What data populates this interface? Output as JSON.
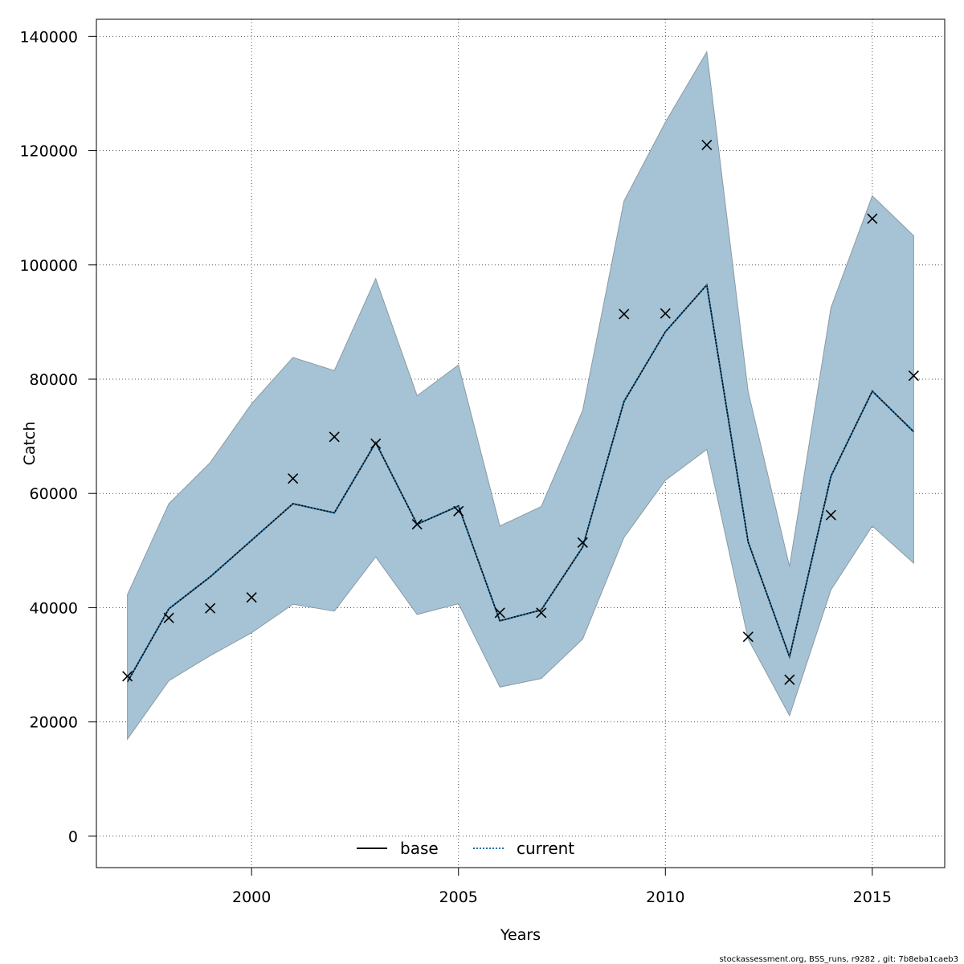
{
  "chart_data": {
    "type": "line",
    "xlabel": "Years",
    "ylabel": "Catch",
    "xlim": [
      1996.25,
      2016.75
    ],
    "ylim": [
      -5500,
      143000
    ],
    "x_ticks": [
      2000,
      2005,
      2010,
      2015
    ],
    "y_ticks": [
      0,
      20000,
      40000,
      60000,
      80000,
      100000,
      120000,
      140000
    ],
    "grid": true,
    "legend_position": "bottom-center",
    "x": [
      1997,
      1998,
      1999,
      2000,
      2001,
      2002,
      2003,
      2004,
      2005,
      2006,
      2007,
      2008,
      2009,
      2010,
      2011,
      2012,
      2013,
      2014,
      2015,
      2016
    ],
    "band": {
      "color": "#a5c3d5",
      "edge_color": "#8a9aa4",
      "lower": [
        17000,
        27200,
        31600,
        35600,
        40600,
        39400,
        48900,
        38800,
        40700,
        26100,
        27600,
        34500,
        52300,
        62300,
        67700,
        34500,
        21100,
        43100,
        54300,
        47800
      ],
      "upper": [
        42300,
        58200,
        65400,
        75700,
        83800,
        81500,
        97600,
        77100,
        82500,
        54300,
        57700,
        74500,
        111200,
        125000,
        137300,
        77800,
        47200,
        92500,
        112100,
        105100
      ]
    },
    "series": [
      {
        "name": "base",
        "style": "solid",
        "color": "#000000",
        "values": [
          27000,
          39800,
          45400,
          51800,
          58200,
          56600,
          68900,
          54600,
          57800,
          37700,
          39600,
          50600,
          76100,
          88300,
          96500,
          51500,
          31400,
          63000,
          77900,
          70800
        ]
      },
      {
        "name": "current",
        "style": "dotted",
        "color": "#1a6fa8",
        "values": [
          27000,
          39800,
          45400,
          51800,
          58200,
          56600,
          68900,
          54600,
          57800,
          37700,
          39600,
          50600,
          76100,
          88300,
          96500,
          51500,
          31400,
          63000,
          77900,
          70800
        ]
      },
      {
        "name": "",
        "style": "points-x",
        "color": "#000000",
        "values": [
          28000,
          38200,
          39900,
          41800,
          62600,
          69900,
          68700,
          54600,
          56900,
          39100,
          39100,
          51400,
          91400,
          91500,
          121000,
          34900,
          27400,
          56200,
          108100,
          80600
        ]
      }
    ],
    "legend": [
      {
        "label": "base",
        "style": "solid",
        "color": "#000000"
      },
      {
        "label": "current",
        "style": "dotted",
        "color": "#1a6fa8"
      }
    ]
  },
  "footer": {
    "note": "stockassessment.org, BSS_runs, r9282 , git: 7b8eba1caeb3"
  }
}
